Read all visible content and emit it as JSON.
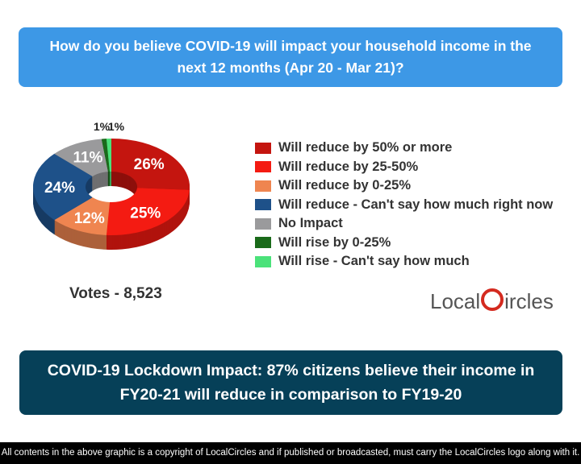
{
  "question": "How do you believe COVID-19 will impact your household income in the next 12 months (Apr 20 - Mar 21)?",
  "chart_data": {
    "type": "pie",
    "categories": [
      "Will reduce by 50% or more",
      "Will reduce by 25-50%",
      "Will reduce by 0-25%",
      "Will reduce - Can't say how much right now",
      "No Impact",
      "Will rise by 0-25%",
      "Will rise - Can't say how much"
    ],
    "values": [
      26,
      25,
      12,
      24,
      11,
      1,
      1
    ],
    "labels": [
      "26%",
      "25%",
      "12%",
      "24%",
      "11%",
      "1%",
      "1%"
    ],
    "colors": [
      "#c4150f",
      "#f41b12",
      "#ef8550",
      "#1e5189",
      "#9a9a9c",
      "#1a6a1a",
      "#4be27a"
    ],
    "legend": "right",
    "style": "3d donut"
  },
  "votes": "Votes - 8,523",
  "logo": {
    "part1": "Local",
    "part2": "ircles",
    "full": "LocalCircles"
  },
  "conclusion": "COVID-19 Lockdown Impact: 87% citizens believe their income in FY20-21 will reduce in comparison to FY19-20",
  "footer": "All contents in the above graphic is a copyright of LocalCircles and if published or broadcasted, must carry the LocalCircles logo along with it."
}
